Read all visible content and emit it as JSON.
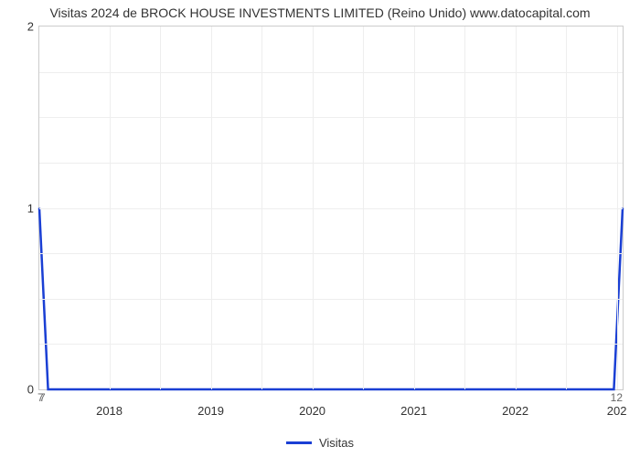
{
  "chart": {
    "type": "line",
    "title": "Visitas 2024 de BROCK HOUSE INVESTMENTS LIMITED (Reino Unido) www.datocapital.com",
    "title_fontsize": 14,
    "title_color": "#333333",
    "background_color": "#ffffff",
    "grid_color": "#eeeeee",
    "border_color": "#cccccc",
    "ylim": [
      0,
      2
    ],
    "ymajor_ticks": [
      0,
      1,
      2
    ],
    "yminor_count_between": 3,
    "y_bottom_small_label": "7",
    "xlim_labels": [
      "2018",
      "2019",
      "2020",
      "2021",
      "2022",
      "202"
    ],
    "x_small_left": "7",
    "x_small_right": "12",
    "series": {
      "name": "Visitas",
      "color": "#1a3fd4",
      "line_width": 2.5,
      "points": [
        {
          "x_pct": 0.0,
          "y_val": 1.0
        },
        {
          "x_pct": 1.5,
          "y_val": 0.0
        },
        {
          "x_pct": 98.5,
          "y_val": 0.0
        },
        {
          "x_pct": 100.0,
          "y_val": 1.0
        }
      ]
    },
    "legend": {
      "label": "Visitas",
      "swatch_color": "#1a3fd4",
      "font_color": "#333333",
      "fontsize": 13
    }
  }
}
